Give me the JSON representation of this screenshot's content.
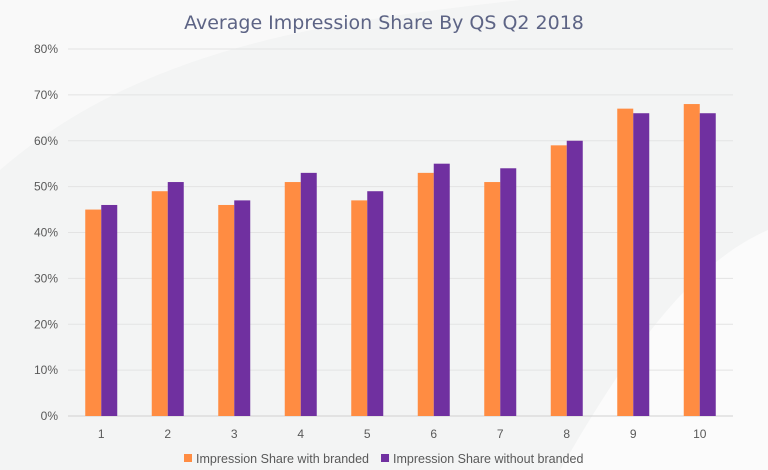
{
  "chart_data": {
    "type": "bar",
    "title": "Average Impression Share By QS Q2 2018",
    "xlabel": "",
    "ylabel": "",
    "categories": [
      "1",
      "2",
      "3",
      "4",
      "5",
      "6",
      "7",
      "8",
      "9",
      "10"
    ],
    "series": [
      {
        "name": "Impression Share with branded",
        "color": "#ff8c42",
        "values": [
          45,
          49,
          46,
          51,
          47,
          53,
          51,
          59,
          67,
          68
        ]
      },
      {
        "name": "Impression Share without branded",
        "color": "#7030a0",
        "values": [
          46,
          51,
          47,
          53,
          49,
          55,
          54,
          60,
          66,
          66
        ]
      }
    ],
    "ylim": [
      0,
      80
    ],
    "yticks": [
      "0%",
      "10%",
      "20%",
      "30%",
      "40%",
      "50%",
      "60%",
      "70%",
      "80%"
    ],
    "grid": true,
    "legend_position": "bottom"
  }
}
